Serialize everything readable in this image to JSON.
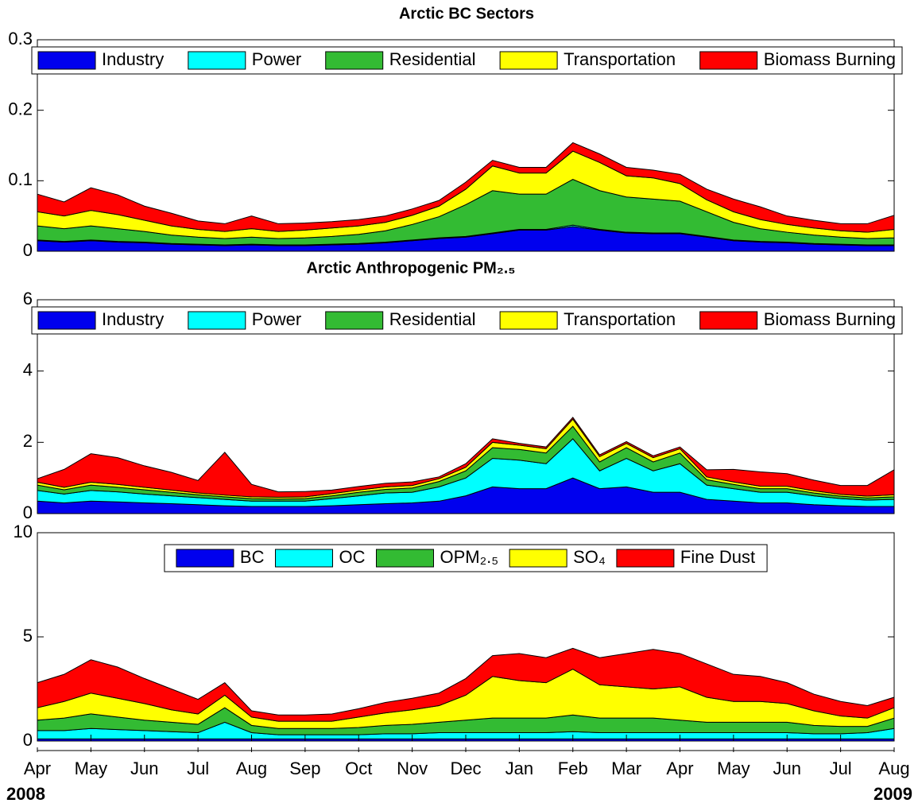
{
  "chart_data": [
    {
      "type": "stacked-area",
      "title": "Arctic BC Sectors",
      "legend": "top",
      "ylim": [
        0,
        0.3
      ],
      "yticks": [
        0,
        0.1,
        0.2,
        0.3
      ],
      "series": [
        {
          "name": "Industry",
          "color": "#0000ee",
          "values": [
            0.015,
            0.013,
            0.015,
            0.013,
            0.012,
            0.01,
            0.009,
            0.008,
            0.009,
            0.008,
            0.008,
            0.009,
            0.01,
            0.012,
            0.015,
            0.018,
            0.02,
            0.025,
            0.03,
            0.03,
            0.035,
            0.03,
            0.026,
            0.025,
            0.025,
            0.02,
            0.015,
            0.013,
            0.012,
            0.01,
            0.009,
            0.008,
            0.008
          ]
        },
        {
          "name": "Power",
          "color": "#00ffff",
          "values": [
            0.001,
            0.001,
            0.001,
            0.001,
            0.001,
            0.001,
            0.001,
            0.001,
            0.001,
            0.001,
            0.001,
            0.001,
            0.001,
            0.001,
            0.001,
            0.001,
            0.001,
            0.001,
            0.001,
            0.001,
            0.002,
            0.001,
            0.001,
            0.001,
            0.001,
            0.001,
            0.001,
            0.001,
            0.001,
            0.001,
            0.001,
            0.001,
            0.001
          ]
        },
        {
          "name": "Residential",
          "color": "#33bb33",
          "values": [
            0.02,
            0.018,
            0.02,
            0.018,
            0.015,
            0.012,
            0.01,
            0.009,
            0.01,
            0.009,
            0.01,
            0.011,
            0.013,
            0.016,
            0.022,
            0.03,
            0.045,
            0.06,
            0.05,
            0.05,
            0.065,
            0.055,
            0.05,
            0.048,
            0.045,
            0.035,
            0.025,
            0.018,
            0.014,
            0.012,
            0.01,
            0.009,
            0.01
          ]
        },
        {
          "name": "Transportation",
          "color": "#ffff00",
          "values": [
            0.02,
            0.018,
            0.022,
            0.02,
            0.016,
            0.013,
            0.011,
            0.01,
            0.012,
            0.01,
            0.011,
            0.012,
            0.012,
            0.012,
            0.013,
            0.015,
            0.022,
            0.035,
            0.03,
            0.03,
            0.04,
            0.04,
            0.03,
            0.03,
            0.025,
            0.017,
            0.015,
            0.013,
            0.011,
            0.01,
            0.009,
            0.009,
            0.012
          ]
        },
        {
          "name": "Biomass Burning",
          "color": "#ff0000",
          "values": [
            0.025,
            0.02,
            0.032,
            0.028,
            0.02,
            0.018,
            0.012,
            0.011,
            0.018,
            0.011,
            0.01,
            0.009,
            0.009,
            0.009,
            0.009,
            0.008,
            0.01,
            0.008,
            0.008,
            0.008,
            0.012,
            0.012,
            0.012,
            0.011,
            0.013,
            0.015,
            0.018,
            0.018,
            0.012,
            0.011,
            0.01,
            0.012,
            0.02
          ]
        }
      ]
    },
    {
      "type": "stacked-area",
      "title": "Arctic Anthropogenic PM₂.₅",
      "legend": "top",
      "ylim": [
        0,
        6
      ],
      "yticks": [
        0,
        2,
        4,
        6
      ],
      "series": [
        {
          "name": "Industry",
          "color": "#0000ee",
          "values": [
            0.35,
            0.3,
            0.35,
            0.33,
            0.3,
            0.28,
            0.25,
            0.22,
            0.2,
            0.2,
            0.2,
            0.22,
            0.25,
            0.28,
            0.3,
            0.35,
            0.5,
            0.75,
            0.7,
            0.7,
            1.0,
            0.7,
            0.75,
            0.6,
            0.6,
            0.4,
            0.35,
            0.3,
            0.3,
            0.25,
            0.22,
            0.2,
            0.2
          ]
        },
        {
          "name": "Power",
          "color": "#00ffff",
          "values": [
            0.3,
            0.25,
            0.3,
            0.28,
            0.25,
            0.22,
            0.2,
            0.18,
            0.15,
            0.15,
            0.15,
            0.2,
            0.25,
            0.3,
            0.3,
            0.4,
            0.5,
            0.8,
            0.8,
            0.7,
            1.1,
            0.5,
            0.8,
            0.6,
            0.8,
            0.4,
            0.35,
            0.3,
            0.3,
            0.25,
            0.2,
            0.18,
            0.2
          ]
        },
        {
          "name": "Residential",
          "color": "#33bb33",
          "values": [
            0.15,
            0.12,
            0.15,
            0.13,
            0.12,
            0.1,
            0.08,
            0.07,
            0.07,
            0.06,
            0.07,
            0.08,
            0.1,
            0.1,
            0.12,
            0.15,
            0.2,
            0.3,
            0.3,
            0.3,
            0.35,
            0.25,
            0.3,
            0.25,
            0.3,
            0.15,
            0.12,
            0.1,
            0.1,
            0.08,
            0.07,
            0.06,
            0.07
          ]
        },
        {
          "name": "Transportation",
          "color": "#ffff00",
          "values": [
            0.08,
            0.07,
            0.08,
            0.08,
            0.07,
            0.06,
            0.05,
            0.05,
            0.05,
            0.05,
            0.05,
            0.06,
            0.06,
            0.07,
            0.07,
            0.08,
            0.1,
            0.15,
            0.12,
            0.12,
            0.2,
            0.15,
            0.12,
            0.12,
            0.12,
            0.08,
            0.07,
            0.07,
            0.07,
            0.06,
            0.05,
            0.05,
            0.06
          ]
        },
        {
          "name": "Biomass Burning",
          "color": "#ff0000",
          "values": [
            0.1,
            0.5,
            0.8,
            0.75,
            0.6,
            0.5,
            0.35,
            1.2,
            0.35,
            0.15,
            0.15,
            0.1,
            0.1,
            0.1,
            0.1,
            0.05,
            0.1,
            0.1,
            0.05,
            0.05,
            0.05,
            0.05,
            0.05,
            0.05,
            0.05,
            0.2,
            0.35,
            0.4,
            0.35,
            0.3,
            0.25,
            0.3,
            0.7
          ]
        }
      ]
    },
    {
      "type": "stacked-area",
      "legend": "center",
      "ylim": [
        0,
        10
      ],
      "yticks": [
        0,
        5,
        10
      ],
      "categories": [
        "Apr",
        null,
        "May",
        null,
        "Jun",
        null,
        "Jul",
        null,
        "Aug",
        null,
        "Sep",
        null,
        "Oct",
        null,
        "Nov",
        null,
        "Dec",
        null,
        "Jan",
        null,
        "Feb",
        null,
        "Mar",
        null,
        "Apr",
        null,
        "May",
        null,
        "Jun",
        null,
        "Jul",
        null,
        "Aug"
      ],
      "year_labels": [
        "2008",
        "2009"
      ],
      "series": [
        {
          "name": "BC",
          "color": "#0000ee",
          "values": [
            0.1,
            0.1,
            0.1,
            0.1,
            0.1,
            0.1,
            0.1,
            0.1,
            0.1,
            0.1,
            0.1,
            0.1,
            0.1,
            0.1,
            0.1,
            0.1,
            0.1,
            0.1,
            0.1,
            0.1,
            0.1,
            0.1,
            0.1,
            0.1,
            0.1,
            0.1,
            0.1,
            0.1,
            0.1,
            0.1,
            0.1,
            0.1,
            0.1
          ]
        },
        {
          "name": "OC",
          "color": "#00ffff",
          "values": [
            0.4,
            0.4,
            0.5,
            0.45,
            0.4,
            0.35,
            0.3,
            0.8,
            0.3,
            0.2,
            0.2,
            0.2,
            0.2,
            0.25,
            0.25,
            0.3,
            0.3,
            0.3,
            0.3,
            0.3,
            0.35,
            0.3,
            0.3,
            0.3,
            0.3,
            0.3,
            0.3,
            0.3,
            0.3,
            0.25,
            0.25,
            0.3,
            0.5
          ]
        },
        {
          "name": "OPM₂.₅",
          "color": "#33bb33",
          "values": [
            0.5,
            0.6,
            0.7,
            0.6,
            0.5,
            0.45,
            0.4,
            0.7,
            0.35,
            0.3,
            0.3,
            0.3,
            0.35,
            0.4,
            0.45,
            0.5,
            0.6,
            0.7,
            0.7,
            0.7,
            0.8,
            0.7,
            0.7,
            0.7,
            0.6,
            0.5,
            0.5,
            0.5,
            0.5,
            0.4,
            0.35,
            0.3,
            0.5
          ]
        },
        {
          "name": "SO₄",
          "color": "#ffff00",
          "values": [
            0.6,
            0.8,
            1.0,
            0.9,
            0.8,
            0.6,
            0.5,
            0.6,
            0.4,
            0.35,
            0.35,
            0.35,
            0.5,
            0.6,
            0.7,
            0.8,
            1.2,
            2.0,
            1.8,
            1.7,
            2.2,
            1.6,
            1.5,
            1.4,
            1.6,
            1.2,
            1.0,
            1.0,
            0.9,
            0.7,
            0.5,
            0.4,
            0.5
          ]
        },
        {
          "name": "Fine Dust",
          "color": "#ff0000",
          "values": [
            1.2,
            1.3,
            1.6,
            1.5,
            1.2,
            1.0,
            0.7,
            0.6,
            0.3,
            0.3,
            0.3,
            0.35,
            0.4,
            0.5,
            0.55,
            0.6,
            0.8,
            1.0,
            1.3,
            1.2,
            1.0,
            1.3,
            1.6,
            1.9,
            1.6,
            1.6,
            1.3,
            1.2,
            1.0,
            0.8,
            0.7,
            0.6,
            0.5
          ]
        }
      ]
    }
  ]
}
